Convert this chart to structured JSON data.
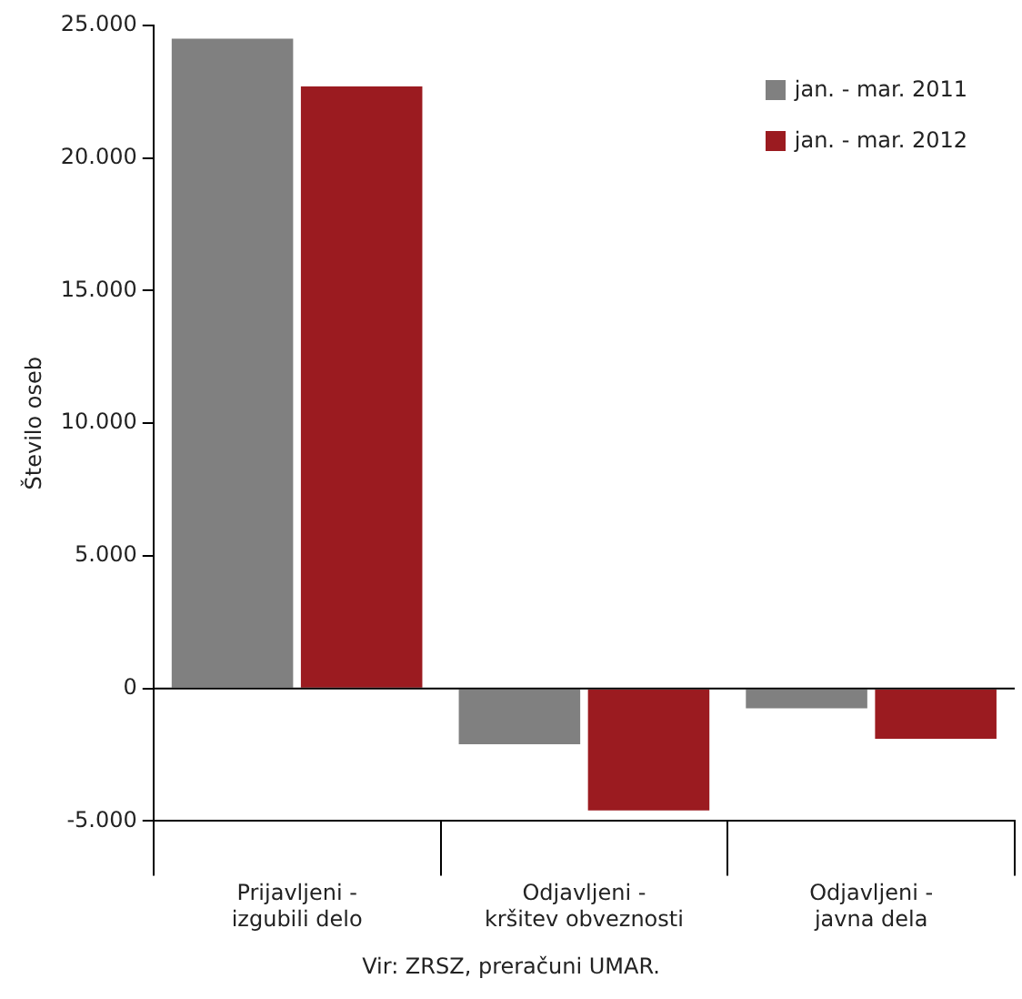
{
  "chart_data": {
    "type": "bar",
    "ylabel": "Število oseb",
    "categories": [
      "Prijavljeni - izgubili delo",
      "Odjavljeni - kršitev obveznosti",
      "Odjavljeni - javna dela"
    ],
    "series": [
      {
        "name": "jan. - mar. 2011",
        "color": "#808080",
        "values": [
          24500,
          -2100,
          -750
        ]
      },
      {
        "name": "jan. - mar. 2012",
        "color": "#9b1b20",
        "values": [
          22700,
          -4600,
          -1900
        ]
      }
    ],
    "ylim": [
      -5000,
      25000
    ],
    "yticks": [
      {
        "value": -5000,
        "label": "-5.000"
      },
      {
        "value": 0,
        "label": "0"
      },
      {
        "value": 5000,
        "label": "5.000"
      },
      {
        "value": 10000,
        "label": "10.000"
      },
      {
        "value": 15000,
        "label": "15.000"
      },
      {
        "value": 20000,
        "label": "20.000"
      },
      {
        "value": 25000,
        "label": "25.000"
      }
    ],
    "grid": false,
    "legend": "top right",
    "ref_lines": [
      {
        "axis": "y",
        "value": 0,
        "color": "#000000"
      }
    ],
    "annotations": [
      "Vir: ZRSZ, preračuni UMAR."
    ]
  }
}
